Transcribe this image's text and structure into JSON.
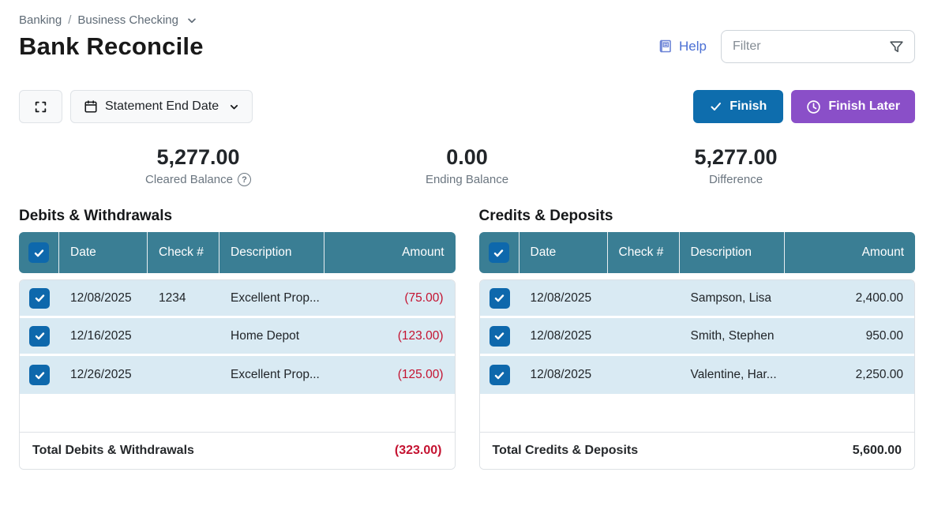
{
  "breadcrumb": {
    "items": [
      "Banking",
      "Business Checking"
    ],
    "separator": "/"
  },
  "page_title": "Bank Reconcile",
  "header": {
    "help_label": "Help",
    "help_icon": "book-icon",
    "filter_placeholder": "Filter",
    "filter_icon": "funnel-icon"
  },
  "toolbar": {
    "expand_icon": "expand-icon",
    "statement_end_date_label": "Statement End Date",
    "finish_label": "Finish",
    "finish_later_label": "Finish Later"
  },
  "summary": {
    "0": {
      "value": "5,277.00",
      "label": "Cleared Balance",
      "help_icon": "question-circle-icon"
    },
    "1": {
      "value": "0.00",
      "label": "Ending Balance"
    },
    "2": {
      "value": "5,277.00",
      "label": "Difference"
    }
  },
  "debits_table": {
    "title": "Debits & Withdrawals",
    "columns": {
      "0": "Date",
      "1": "Check #",
      "2": "Description",
      "3": "Amount"
    },
    "rows": [
      {
        "checked": true,
        "date": "12/08/2025",
        "check_no": "1234",
        "description": "Excellent Prop...",
        "amount": "(75.00)",
        "negative": true
      },
      {
        "checked": true,
        "date": "12/16/2025",
        "check_no": "",
        "description": "Home Depot",
        "amount": "(123.00)",
        "negative": true
      },
      {
        "checked": true,
        "date": "12/26/2025",
        "check_no": "",
        "description": "Excellent Prop...",
        "amount": "(125.00)",
        "negative": true
      }
    ],
    "total_label": "Total Debits & Withdrawals",
    "total_amount": "(323.00)"
  },
  "credits_table": {
    "title": "Credits & Deposits",
    "columns": {
      "0": "Date",
      "1": "Check #",
      "2": "Description",
      "3": "Amount"
    },
    "rows": [
      {
        "checked": true,
        "date": "12/08/2025",
        "check_no": "",
        "description": "Sampson, Lisa",
        "amount": "2,400.00",
        "negative": false
      },
      {
        "checked": true,
        "date": "12/08/2025",
        "check_no": "",
        "description": "Smith, Stephen",
        "amount": "950.00",
        "negative": false
      },
      {
        "checked": true,
        "date": "12/08/2025",
        "check_no": "",
        "description": "Valentine, Har...",
        "amount": "2,250.00",
        "negative": false
      }
    ],
    "total_label": "Total Credits & Deposits",
    "total_amount": "5,600.00"
  },
  "colors": {
    "table_header_teal": "#3a7e94",
    "checkbox_blue": "#0e68ac",
    "row_light_blue": "#d9eaf3",
    "negative_red": "#c41230",
    "finish_blue": "#0e6dad",
    "finish_later_purple": "#8a4fc8",
    "help_link_blue": "#4a6fd4"
  }
}
